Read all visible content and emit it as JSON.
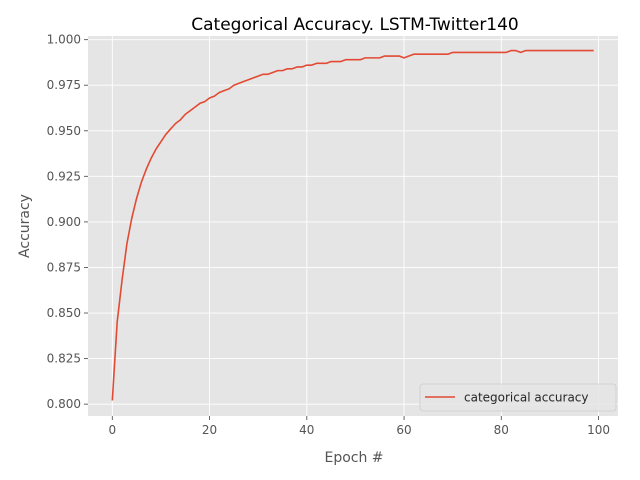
{
  "chart_data": {
    "type": "line",
    "title": "Categorical Accuracy. LSTM-Twitter140",
    "xlabel": "Epoch #",
    "ylabel": "Accuracy",
    "xlim": [
      -5,
      104
    ],
    "ylim": [
      0.7935,
      1.002
    ],
    "xticks": [
      0,
      20,
      40,
      60,
      80,
      100
    ],
    "xtick_labels": [
      "0",
      "20",
      "40",
      "60",
      "80",
      "100"
    ],
    "yticks": [
      0.8,
      0.825,
      0.85,
      0.875,
      0.9,
      0.925,
      0.95,
      0.975,
      1.0
    ],
    "ytick_labels": [
      "0.800",
      "0.825",
      "0.850",
      "0.875",
      "0.900",
      "0.925",
      "0.950",
      "0.975",
      "1.000"
    ],
    "grid": true,
    "legend_position": "lower-right",
    "background_color": "#e5e5e5",
    "series": [
      {
        "name": "categorical accuracy",
        "color": "#e24a33",
        "x": [
          0,
          1,
          2,
          3,
          4,
          5,
          6,
          7,
          8,
          9,
          10,
          11,
          12,
          13,
          14,
          15,
          16,
          17,
          18,
          19,
          20,
          21,
          22,
          23,
          24,
          25,
          26,
          27,
          28,
          29,
          30,
          31,
          32,
          33,
          34,
          35,
          36,
          37,
          38,
          39,
          40,
          41,
          42,
          43,
          44,
          45,
          46,
          47,
          48,
          49,
          50,
          51,
          52,
          53,
          54,
          55,
          56,
          57,
          58,
          59,
          60,
          61,
          62,
          63,
          64,
          65,
          66,
          67,
          68,
          69,
          70,
          71,
          72,
          73,
          74,
          75,
          76,
          77,
          78,
          79,
          80,
          81,
          82,
          83,
          84,
          85,
          86,
          87,
          88,
          89,
          90,
          91,
          92,
          93,
          94,
          95,
          96,
          97,
          98,
          99
        ],
        "y": [
          0.802,
          0.845,
          0.868,
          0.888,
          0.902,
          0.913,
          0.922,
          0.929,
          0.935,
          0.94,
          0.944,
          0.948,
          0.951,
          0.954,
          0.956,
          0.959,
          0.961,
          0.963,
          0.965,
          0.966,
          0.968,
          0.969,
          0.971,
          0.972,
          0.973,
          0.975,
          0.976,
          0.977,
          0.978,
          0.979,
          0.98,
          0.981,
          0.981,
          0.982,
          0.983,
          0.983,
          0.984,
          0.984,
          0.985,
          0.985,
          0.986,
          0.986,
          0.987,
          0.987,
          0.987,
          0.988,
          0.988,
          0.988,
          0.989,
          0.989,
          0.989,
          0.989,
          0.99,
          0.99,
          0.99,
          0.99,
          0.991,
          0.991,
          0.991,
          0.991,
          0.99,
          0.991,
          0.992,
          0.992,
          0.992,
          0.992,
          0.992,
          0.992,
          0.992,
          0.992,
          0.993,
          0.993,
          0.993,
          0.993,
          0.993,
          0.993,
          0.993,
          0.993,
          0.993,
          0.993,
          0.993,
          0.993,
          0.994,
          0.994,
          0.993,
          0.994,
          0.994,
          0.994,
          0.994,
          0.994,
          0.994,
          0.994,
          0.994,
          0.994,
          0.994,
          0.994,
          0.994,
          0.994,
          0.994,
          0.994
        ]
      }
    ]
  }
}
